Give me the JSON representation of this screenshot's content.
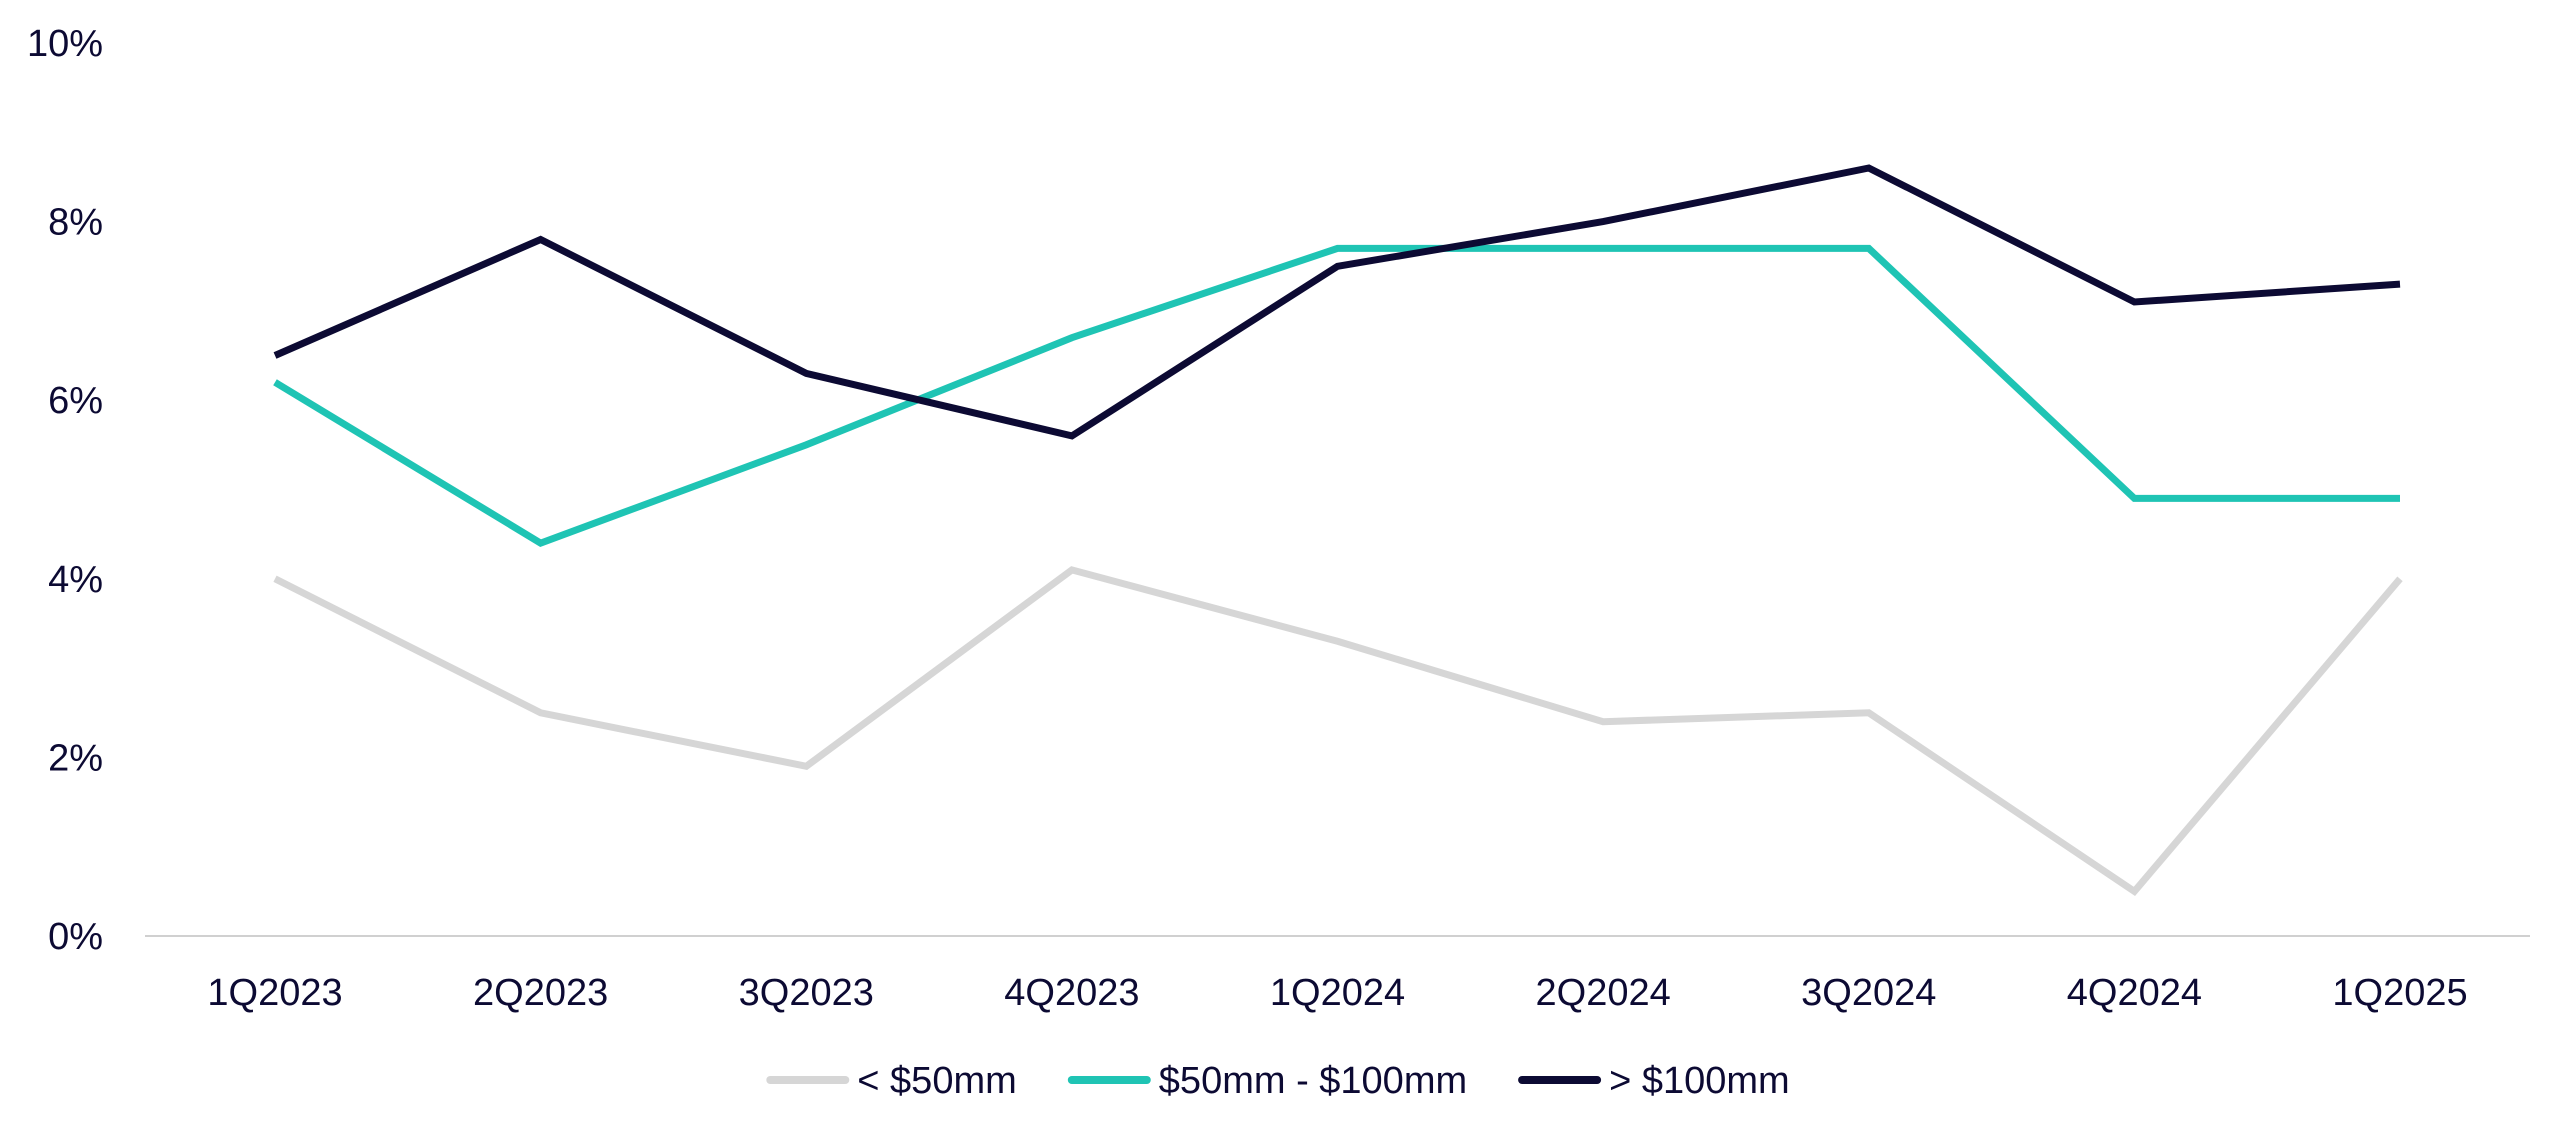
{
  "chart_data": {
    "type": "line",
    "title": "",
    "xlabel": "",
    "ylabel": "",
    "categories": [
      "1Q2023",
      "2Q2023",
      "3Q2023",
      "4Q2023",
      "1Q2024",
      "2Q2024",
      "3Q2024",
      "4Q2024",
      "1Q2025"
    ],
    "ylim": [
      0,
      10
    ],
    "yticks": [
      0,
      2,
      4,
      6,
      8,
      10
    ],
    "ytick_labels": [
      "0%",
      "2%",
      "4%",
      "6%",
      "8%",
      "10%"
    ],
    "grid": false,
    "legend_position": "bottom",
    "series": [
      {
        "name": "< $50mm",
        "color": "#d6d6d6",
        "values": [
          4.0,
          2.5,
          1.9,
          4.1,
          3.3,
          2.4,
          2.5,
          0.5,
          4.0
        ]
      },
      {
        "name": "$50mm - $100mm",
        "color": "#1fc4b4",
        "values": [
          6.2,
          4.4,
          5.5,
          6.7,
          7.7,
          7.7,
          7.7,
          4.9,
          4.9
        ]
      },
      {
        "name": "> $100mm",
        "color": "#0c0a33",
        "values": [
          6.5,
          7.8,
          6.3,
          5.6,
          7.5,
          8.0,
          8.6,
          7.1,
          7.3
        ]
      }
    ]
  }
}
